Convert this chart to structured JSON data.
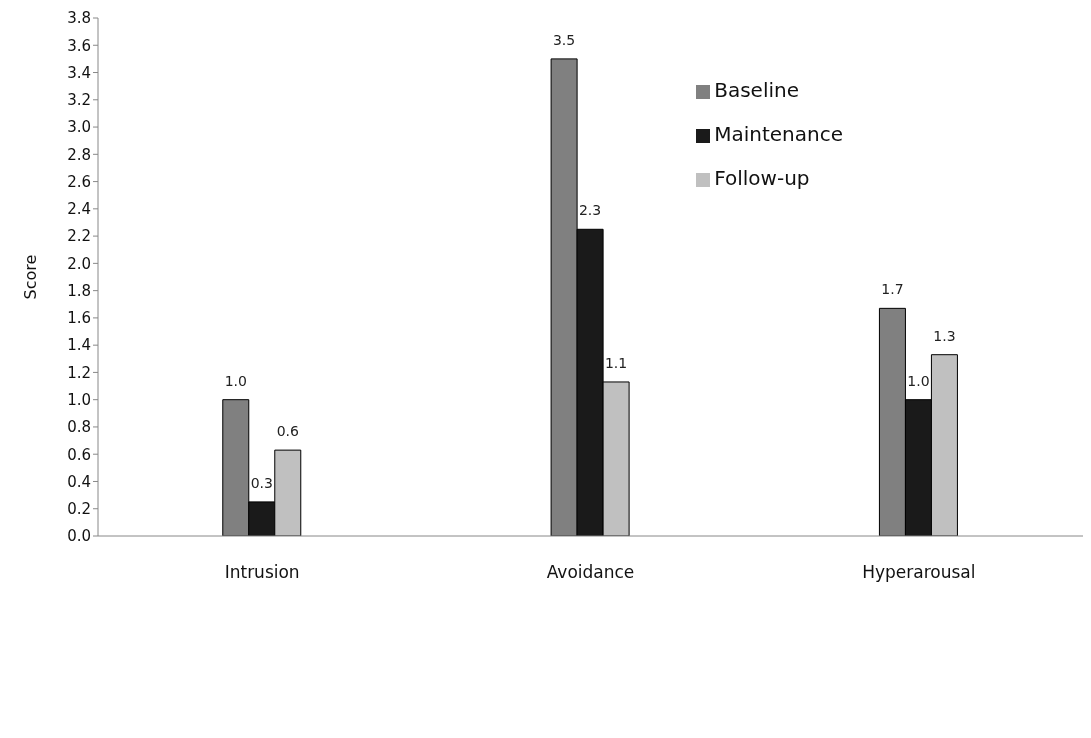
{
  "chart_data": {
    "type": "bar",
    "ylabel": "Score",
    "categories": [
      "Intrusion",
      "Avoidance",
      "Hyperarousal"
    ],
    "series": [
      {
        "name": "Baseline",
        "color": "#808080",
        "values": [
          1.0,
          3.5,
          1.67
        ],
        "value_labels": [
          "1.0",
          "3.5",
          "1.7"
        ]
      },
      {
        "name": "Maintenance",
        "color": "#1a1a1a",
        "values": [
          0.25,
          2.25,
          1.0
        ],
        "value_labels": [
          "0.3",
          "2.3",
          "1.0"
        ]
      },
      {
        "name": "Follow-up",
        "color": "#c0c0c0",
        "values": [
          0.63,
          1.13,
          1.33
        ],
        "value_labels": [
          "0.6",
          "1.1",
          "1.3"
        ]
      }
    ],
    "ylim": [
      0,
      3.8
    ],
    "yticks": [
      {
        "value": 0,
        "label": "0.0"
      },
      {
        "value": 0.2,
        "label": "0.2"
      },
      {
        "value": 0.4,
        "label": "0.4"
      },
      {
        "value": 0.6,
        "label": "0.6"
      },
      {
        "value": 0.8,
        "label": "0.8"
      },
      {
        "value": 1.0,
        "label": "1.0"
      },
      {
        "value": 1.2,
        "label": "1.2"
      },
      {
        "value": 1.4,
        "label": "1.4"
      },
      {
        "value": 1.6,
        "label": "1.6"
      },
      {
        "value": 1.8,
        "label": "1.8"
      },
      {
        "value": 2.0,
        "label": "2.0"
      },
      {
        "value": 2.2,
        "label": "2.2"
      },
      {
        "value": 2.4,
        "label": "2.4"
      },
      {
        "value": 2.6,
        "label": "2.6"
      },
      {
        "value": 2.8,
        "label": "2.8"
      },
      {
        "value": 3.0,
        "label": "3.0"
      },
      {
        "value": 3.2,
        "label": "3.2"
      },
      {
        "value": 3.4,
        "label": "3.4"
      },
      {
        "value": 3.6,
        "label": "3.6"
      },
      {
        "value": 3.8,
        "label": "3.8"
      }
    ],
    "grid": false,
    "legend": "top right"
  }
}
